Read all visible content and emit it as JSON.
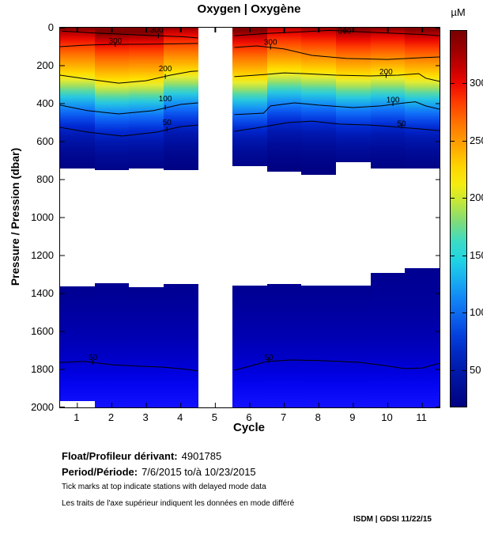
{
  "title": "Oxygen | Oxygène",
  "axes": {
    "x_label": "Cycle",
    "x_ticks": [
      "1",
      "2",
      "3",
      "4",
      "5",
      "6",
      "7",
      "8",
      "9",
      "10",
      "11"
    ],
    "y_label": "Pressure / Pression (dbar)",
    "y_ticks": [
      "0",
      "200",
      "400",
      "600",
      "800",
      "1000",
      "1200",
      "1400",
      "1600",
      "1800",
      "2000"
    ]
  },
  "colorbar": {
    "unit_label": "µM",
    "min": 18,
    "max": 345.5,
    "ticks": [
      "300",
      "250",
      "200",
      "150",
      "100",
      "50"
    ],
    "gradient": [
      [
        "0%",
        "#7a0000"
      ],
      [
        "5%",
        "#9c0000"
      ],
      [
        "10%",
        "#c80000"
      ],
      [
        "14%",
        "#ee0800"
      ],
      [
        "19%",
        "#ff3c00"
      ],
      [
        "25%",
        "#ff7800"
      ],
      [
        "30%",
        "#ffa000"
      ],
      [
        "36%",
        "#ffd400"
      ],
      [
        "41%",
        "#f4ec10"
      ],
      [
        "45%",
        "#c8e834"
      ],
      [
        "51%",
        "#7cdc7c"
      ],
      [
        "56%",
        "#3cdcc4"
      ],
      [
        "61%",
        "#20d4e4"
      ],
      [
        "66%",
        "#18b0f0"
      ],
      [
        "71%",
        "#1288f6"
      ],
      [
        "76%",
        "#0c64ec"
      ],
      [
        "81%",
        "#0440dc"
      ],
      [
        "86%",
        "#0028c0"
      ],
      [
        "91%",
        "#0018a8"
      ],
      [
        "96%",
        "#000c90"
      ],
      [
        "100%",
        "#000083"
      ]
    ]
  },
  "footer": {
    "float_label": "Float/Profileur dérivant:",
    "float_value": "4901785",
    "period_label": "Period/Période:",
    "period_value": "7/6/2015  to/à  10/23/2015",
    "note_en": "Tick marks at top indicate stations with delayed mode data",
    "note_fr": "Les traits de l'axe supérieur indiquent les données en mode différé",
    "credit": "ISDM | GDSI  11/22/15"
  },
  "chart_data": {
    "type": "heatmap",
    "title": "Oxygen | Oxygène",
    "xlabel": "Cycle",
    "ylabel": "Pressure / Pression (dbar)",
    "x_range": [
      0.5,
      11.5
    ],
    "y_range": [
      0,
      2000
    ],
    "value_unit": "µM",
    "value_range": [
      18,
      345.5
    ],
    "cycles": [
      1,
      2,
      3,
      4,
      5,
      6,
      7,
      8,
      9,
      10,
      11
    ],
    "missing_cycles": [
      5
    ],
    "delayed_mode_tick_cycles": [
      1,
      2,
      3,
      4,
      5,
      6,
      7,
      8,
      9,
      10,
      11
    ],
    "shallow_block": {
      "top_dbar": [
        0,
        0,
        0,
        0,
        null,
        0,
        0,
        0,
        0,
        0,
        0
      ],
      "bottom_dbar": [
        742,
        750,
        742,
        750,
        null,
        730,
        760,
        775,
        710,
        742,
        742
      ],
      "profile_shift_dbar": [
        0,
        30,
        25,
        -15,
        null,
        15,
        -25,
        -15,
        5,
        -5,
        10
      ],
      "color_stops_dbar": [
        [
          0,
          "#800000"
        ],
        [
          30,
          "#c00000"
        ],
        [
          60,
          "#ee0c00"
        ],
        [
          100,
          "#ff4000"
        ],
        [
          150,
          "#ff7c00"
        ],
        [
          200,
          "#ffb000"
        ],
        [
          245,
          "#ffe000"
        ],
        [
          275,
          "#e6ec30"
        ],
        [
          305,
          "#a4e05c"
        ],
        [
          335,
          "#54d8a8"
        ],
        [
          365,
          "#28c8e0"
        ],
        [
          400,
          "#18a0f0"
        ],
        [
          440,
          "#1070f8"
        ],
        [
          480,
          "#0848e8"
        ],
        [
          520,
          "#0028d0"
        ],
        [
          570,
          "#0018b0"
        ],
        [
          640,
          "#000c98"
        ],
        [
          720,
          "#000488"
        ],
        [
          800,
          "#000080"
        ]
      ]
    },
    "deep_block": {
      "top_dbar": [
        1363,
        1346,
        1367,
        1350,
        null,
        1358,
        1350,
        1358,
        1358,
        1292,
        1267
      ],
      "bottom_dbar": [
        1965,
        2000,
        2000,
        2000,
        null,
        2000,
        2000,
        2000,
        2000,
        2000,
        2000
      ],
      "color_stops_dbar": [
        [
          1260,
          "#000090"
        ],
        [
          1480,
          "#00009e"
        ],
        [
          1620,
          "#0000b0"
        ],
        [
          1740,
          "#0000c8"
        ],
        [
          1820,
          "#0000e0"
        ],
        [
          1890,
          "#0505f2"
        ],
        [
          2000,
          "#1212ff"
        ]
      ]
    },
    "contours": [
      {
        "level": 300,
        "label": "300",
        "label_at": [
          3.3,
          10
        ],
        "tick_at": [
          3.35,
          42
        ],
        "points": [
          [
            0.55,
            18
          ],
          [
            1.5,
            28
          ],
          [
            2.5,
            36
          ],
          [
            3.3,
            42
          ],
          [
            4.1,
            48
          ],
          [
            4.5,
            54
          ]
        ]
      },
      {
        "level": 300,
        "label": "300",
        "label_at": [
          2.1,
          68
        ],
        "tick_at": [
          2.1,
          88
        ],
        "points": [
          [
            0.5,
            100
          ],
          [
            1.2,
            92
          ],
          [
            2.0,
            88
          ],
          [
            3.0,
            87
          ],
          [
            4.0,
            84
          ],
          [
            4.5,
            83
          ]
        ]
      },
      {
        "level": 200,
        "label": "200",
        "label_at": [
          3.55,
          215
        ],
        "tick_at": [
          3.55,
          257
        ],
        "points": [
          [
            0.5,
            250
          ],
          [
            1.3,
            271
          ],
          [
            2.2,
            292
          ],
          [
            3.0,
            279
          ],
          [
            3.7,
            250
          ],
          [
            4.3,
            230
          ],
          [
            4.5,
            228
          ]
        ]
      },
      {
        "level": 100,
        "label": "100",
        "label_at": [
          3.55,
          372
        ],
        "tick_at": [
          3.55,
          420
        ],
        "points": [
          [
            0.5,
            408
          ],
          [
            1.3,
            437
          ],
          [
            2.2,
            454
          ],
          [
            3.2,
            437
          ],
          [
            4.0,
            404
          ],
          [
            4.5,
            396
          ]
        ]
      },
      {
        "level": 50,
        "label": "50",
        "label_at": [
          3.6,
          498
        ],
        "tick_at": [
          3.6,
          535
        ],
        "points": [
          [
            0.5,
            525
          ],
          [
            1.3,
            550
          ],
          [
            2.3,
            571
          ],
          [
            3.3,
            550
          ],
          [
            4.0,
            521
          ],
          [
            4.5,
            513
          ]
        ]
      },
      {
        "level": 50,
        "label": "50",
        "label_at": [
          1.45,
          1735
        ],
        "tick_at": [
          1.45,
          1762
        ],
        "points": [
          [
            0.5,
            1763
          ],
          [
            1.2,
            1758
          ],
          [
            2.0,
            1775
          ],
          [
            2.8,
            1783
          ],
          [
            3.5,
            1788
          ],
          [
            4.2,
            1800
          ],
          [
            4.5,
            1808
          ]
        ]
      },
      {
        "level": 300,
        "label": "300",
        "label_at": [
          8.75,
          16
        ],
        "tick_at": [
          8.75,
          16
        ],
        "points": [
          [
            5.55,
            42
          ],
          [
            6.5,
            30
          ],
          [
            7.5,
            22
          ],
          [
            8.3,
            14
          ],
          [
            9.0,
            20
          ],
          [
            10.0,
            28
          ],
          [
            11.0,
            36
          ],
          [
            11.5,
            42
          ]
        ]
      },
      {
        "level": 300,
        "label": "300",
        "label_at": [
          6.6,
          76
        ],
        "tick_at": [
          6.6,
          102
        ],
        "points": [
          [
            5.55,
            104
          ],
          [
            6.2,
            96
          ],
          [
            7.0,
            112
          ],
          [
            7.8,
            146
          ],
          [
            8.8,
            162
          ],
          [
            10.0,
            167
          ],
          [
            11.0,
            158
          ],
          [
            11.5,
            154
          ]
        ]
      },
      {
        "level": 200,
        "label": "200",
        "label_at": [
          9.95,
          232
        ],
        "tick_at": [
          9.95,
          252
        ],
        "points": [
          [
            5.55,
            258
          ],
          [
            6.5,
            246
          ],
          [
            7.0,
            238
          ],
          [
            7.6,
            242
          ],
          [
            8.5,
            250
          ],
          [
            9.5,
            254
          ],
          [
            10.3,
            250
          ],
          [
            10.9,
            242
          ],
          [
            11.1,
            266
          ],
          [
            11.5,
            283
          ]
        ]
      },
      {
        "level": 100,
        "label": "100",
        "label_at": [
          10.15,
          380
        ],
        "tick_at": [
          10.15,
          400
        ],
        "points": [
          [
            5.55,
            458
          ],
          [
            6.4,
            450
          ],
          [
            6.6,
            412
          ],
          [
            7.3,
            396
          ],
          [
            8.0,
            408
          ],
          [
            9.0,
            421
          ],
          [
            9.8,
            412
          ],
          [
            10.5,
            396
          ],
          [
            10.8,
            390
          ],
          [
            11.1,
            412
          ],
          [
            11.5,
            429
          ]
        ]
      },
      {
        "level": 50,
        "label": "50",
        "label_at": [
          10.4,
          505
        ],
        "tick_at": [
          10.4,
          519
        ],
        "points": [
          [
            5.55,
            546
          ],
          [
            6.3,
            525
          ],
          [
            7.1,
            500
          ],
          [
            7.8,
            492
          ],
          [
            8.6,
            508
          ],
          [
            9.5,
            513
          ],
          [
            10.1,
            521
          ],
          [
            10.9,
            533
          ],
          [
            11.5,
            542
          ]
        ]
      },
      {
        "level": 50,
        "label": "50",
        "label_at": [
          6.55,
          1735
        ],
        "tick_at": [
          6.55,
          1752
        ],
        "points": [
          [
            5.55,
            1804
          ],
          [
            6.0,
            1783
          ],
          [
            6.5,
            1758
          ],
          [
            7.2,
            1750
          ],
          [
            8.2,
            1754
          ],
          [
            9.2,
            1763
          ],
          [
            9.9,
            1779
          ],
          [
            10.5,
            1796
          ],
          [
            11.0,
            1792
          ],
          [
            11.5,
            1767
          ]
        ]
      }
    ]
  }
}
